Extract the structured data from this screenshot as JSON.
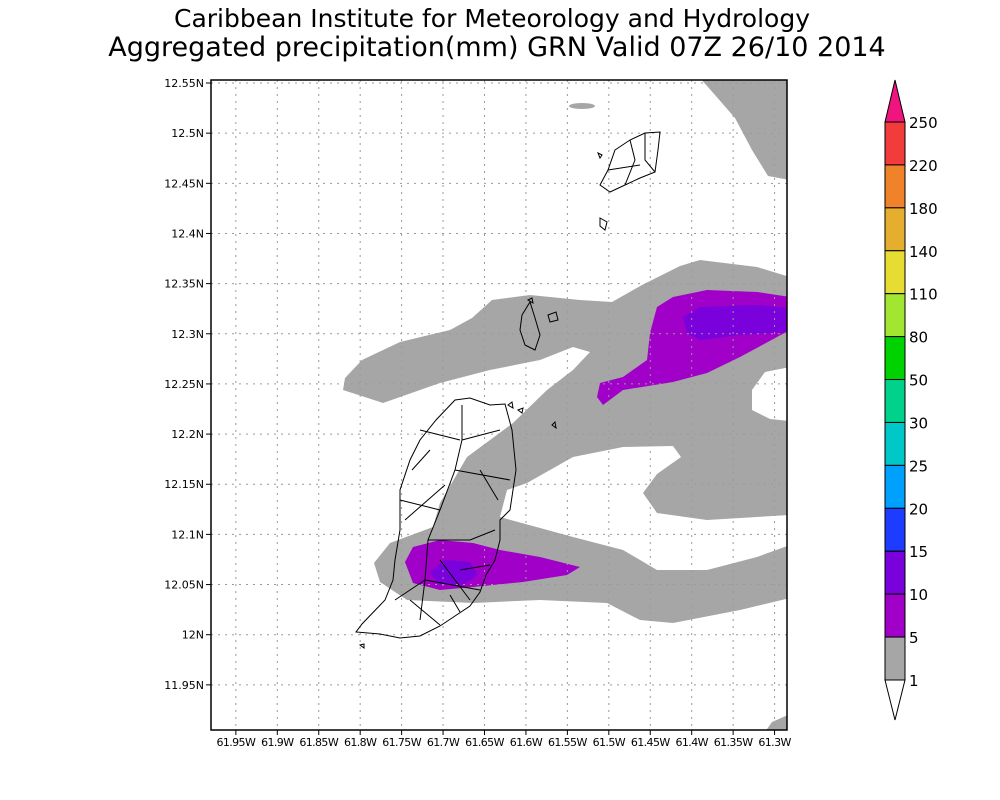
{
  "title": "Caribbean Institute for Meteorology and Hydrology",
  "subtitle": "Aggregated precipitation(mm) GRN Valid 07Z 26/10 2014",
  "map": {
    "lat_range": [
      11.905,
      12.553
    ],
    "lon_range": [
      -61.98,
      -61.285
    ],
    "lat_labels": [
      "12.55N",
      "12.5N",
      "12.45N",
      "12.4N",
      "12.35N",
      "12.3N",
      "12.25N",
      "12.2N",
      "12.15N",
      "12.1N",
      "12.05N",
      "12N",
      "11.95N"
    ],
    "lat_values": [
      12.55,
      12.5,
      12.45,
      12.4,
      12.35,
      12.3,
      12.25,
      12.2,
      12.15,
      12.1,
      12.05,
      12.0,
      11.95
    ],
    "lon_labels": [
      "61.95W",
      "61.9W",
      "61.85W",
      "61.8W",
      "61.75W",
      "61.7W",
      "61.65W",
      "61.6W",
      "61.55W",
      "61.5W",
      "61.45W",
      "61.4W",
      "61.35W",
      "61.3W"
    ],
    "lon_values": [
      -61.95,
      -61.9,
      -61.85,
      -61.8,
      -61.75,
      -61.7,
      -61.65,
      -61.6,
      -61.55,
      -61.5,
      -61.45,
      -61.4,
      -61.35,
      -61.3
    ]
  },
  "colorbar": {
    "levels": [
      "250",
      "220",
      "180",
      "140",
      "110",
      "80",
      "50",
      "30",
      "25",
      "20",
      "15",
      "10",
      "5",
      "1"
    ],
    "colors": [
      "#f23c3c",
      "#f0822a",
      "#e6ae2e",
      "#e6dc32",
      "#a2e632",
      "#00d200",
      "#00d28c",
      "#00c8c8",
      "#00a0ff",
      "#1e3cff",
      "#7a00dc",
      "#a000c8",
      "#a6a6a6"
    ],
    "over_color": "#f0147f",
    "under_color": "#ffffff"
  },
  "field_colors": {
    "gray": "#a6a6a6",
    "purple": "#a000c8",
    "violet": "#7a00dc"
  }
}
